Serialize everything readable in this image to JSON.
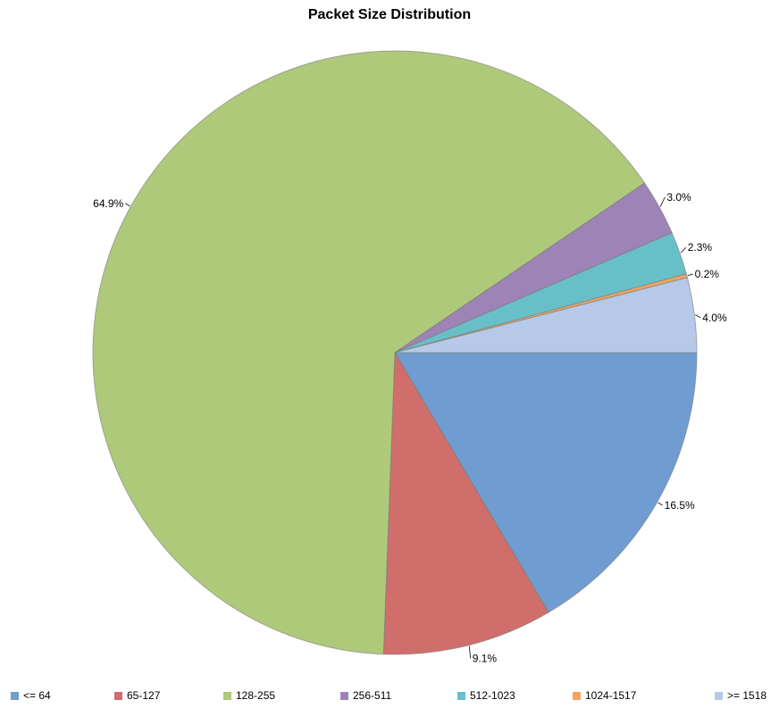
{
  "chart_data": {
    "type": "pie",
    "title": "Packet Size Distribution",
    "start_angle_deg": 0,
    "direction": "clockwise",
    "legend_position": "bottom",
    "slices": [
      {
        "label": "<= 64",
        "value": 16.5,
        "value_label": "16.5%",
        "color": "#6f9dd1"
      },
      {
        "label": "65-127",
        "value": 9.1,
        "value_label": "9.1%",
        "color": "#cf6e6b"
      },
      {
        "label": "128-255",
        "value": 64.9,
        "value_label": "64.9%",
        "color": "#afc97b"
      },
      {
        "label": "256-511",
        "value": 3.0,
        "value_label": "3.0%",
        "color": "#9e83b6"
      },
      {
        "label": "512-1023",
        "value": 2.3,
        "value_label": "2.3%",
        "color": "#67c0c8"
      },
      {
        "label": "1024-1517",
        "value": 0.2,
        "value_label": "0.2%",
        "color": "#f2a45d"
      },
      {
        "label": ">= 1518",
        "value": 4.0,
        "value_label": "4.0%",
        "color": "#b6c9e8"
      }
    ]
  }
}
